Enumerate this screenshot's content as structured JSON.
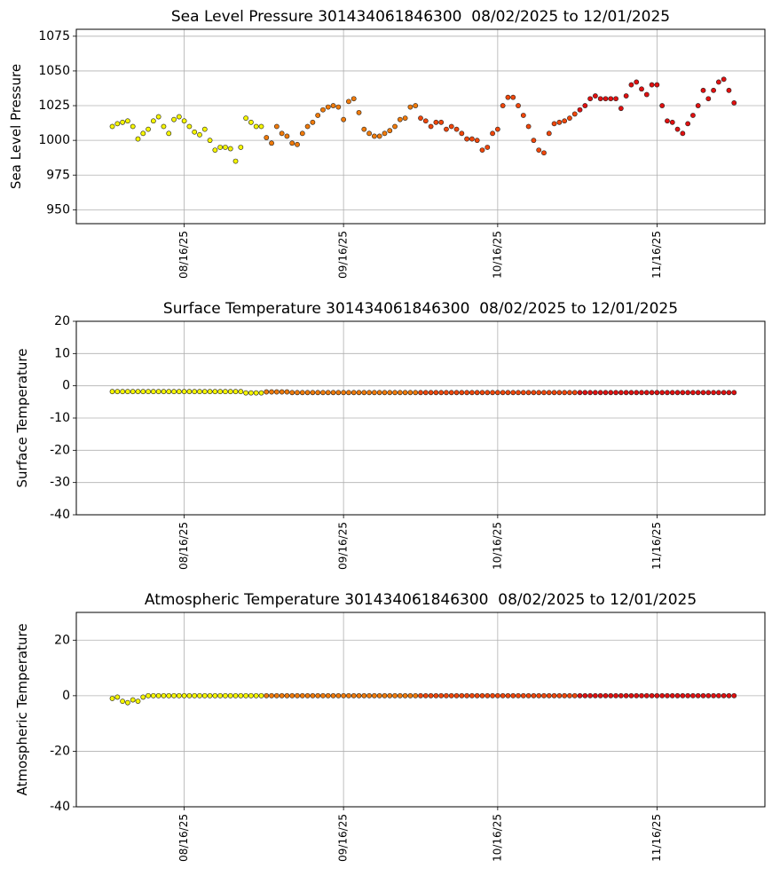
{
  "chart_data": [
    {
      "type": "scatter",
      "title": "Sea Level Pressure 301434061846300  08/02/2025 to 12/01/2025",
      "y_label": "Sea Level Pressure",
      "xlim": [
        "07/26/25",
        "12/07/25"
      ],
      "xticks": [
        {
          "value": "08/16/25",
          "label": "08/16/25"
        },
        {
          "value": "09/16/25",
          "label": "09/16/25"
        },
        {
          "value": "10/16/25",
          "label": "10/16/25"
        },
        {
          "value": "11/16/25",
          "label": "11/16/25"
        }
      ],
      "ylim": [
        940,
        1080
      ],
      "yticks": [
        950,
        975,
        1000,
        1025,
        1050,
        1075
      ],
      "grid": true,
      "series": [
        {
          "color": "#f5f500",
          "x": [
            "08/02/25",
            "08/03/25",
            "08/04/25",
            "08/05/25",
            "08/06/25",
            "08/07/25",
            "08/08/25",
            "08/09/25",
            "08/10/25",
            "08/11/25",
            "08/12/25",
            "08/13/25",
            "08/14/25",
            "08/15/25",
            "08/16/25",
            "08/17/25",
            "08/18/25",
            "08/19/25",
            "08/20/25",
            "08/21/25",
            "08/22/25",
            "08/23/25",
            "08/24/25",
            "08/25/25",
            "08/26/25",
            "08/27/25",
            "08/28/25",
            "08/29/25",
            "08/30/25",
            "08/31/25"
          ],
          "values": [
            1010,
            1012,
            1013,
            1014,
            1010,
            1001,
            1005,
            1008,
            1014,
            1017,
            1010,
            1005,
            1015,
            1017,
            1014,
            1010,
            1006,
            1004,
            1008,
            1000,
            993,
            995,
            995,
            994,
            985,
            995,
            1016,
            1013,
            1010,
            1010
          ]
        },
        {
          "color": "#f07a0a",
          "x": [
            "09/01/25",
            "09/02/25",
            "09/03/25",
            "09/04/25",
            "09/05/25",
            "09/06/25",
            "09/07/25",
            "09/08/25",
            "09/09/25",
            "09/10/25",
            "09/11/25",
            "09/12/25",
            "09/13/25",
            "09/14/25",
            "09/15/25",
            "09/16/25",
            "09/17/25",
            "09/18/25",
            "09/19/25",
            "09/20/25",
            "09/21/25",
            "09/22/25",
            "09/23/25",
            "09/24/25",
            "09/25/25",
            "09/26/25",
            "09/27/25",
            "09/28/25",
            "09/29/25",
            "09/30/25"
          ],
          "values": [
            1002,
            998,
            1010,
            1005,
            1003,
            998,
            997,
            1005,
            1010,
            1013,
            1018,
            1022,
            1024,
            1025,
            1024,
            1015,
            1028,
            1030,
            1020,
            1008,
            1005,
            1003,
            1003,
            1005,
            1007,
            1010,
            1015,
            1016,
            1024,
            1025
          ]
        },
        {
          "color": "#f0460a",
          "x": [
            "10/01/25",
            "10/02/25",
            "10/03/25",
            "10/04/25",
            "10/05/25",
            "10/06/25",
            "10/07/25",
            "10/08/25",
            "10/09/25",
            "10/10/25",
            "10/11/25",
            "10/12/25",
            "10/13/25",
            "10/14/25",
            "10/15/25",
            "10/16/25",
            "10/17/25",
            "10/18/25",
            "10/19/25",
            "10/20/25",
            "10/21/25",
            "10/22/25",
            "10/23/25",
            "10/24/25",
            "10/25/25",
            "10/26/25",
            "10/27/25",
            "10/28/25",
            "10/29/25",
            "10/30/25",
            "10/31/25"
          ],
          "values": [
            1016,
            1014,
            1010,
            1013,
            1013,
            1008,
            1010,
            1008,
            1005,
            1001,
            1001,
            1000,
            993,
            995,
            1005,
            1008,
            1025,
            1031,
            1031,
            1025,
            1018,
            1010,
            1000,
            993,
            991,
            1005,
            1012,
            1013,
            1014,
            1016,
            1019
          ]
        },
        {
          "color": "#e01010",
          "x": [
            "11/01/25",
            "11/02/25",
            "11/03/25",
            "11/04/25",
            "11/05/25",
            "11/06/25",
            "11/07/25",
            "11/08/25",
            "11/09/25",
            "11/10/25",
            "11/11/25",
            "11/12/25",
            "11/13/25",
            "11/14/25",
            "11/15/25",
            "11/16/25",
            "11/17/25",
            "11/18/25",
            "11/19/25",
            "11/20/25",
            "11/21/25",
            "11/22/25",
            "11/23/25",
            "11/24/25",
            "11/25/25",
            "11/26/25",
            "11/27/25",
            "11/28/25",
            "11/29/25",
            "11/30/25",
            "12/01/25"
          ],
          "values": [
            1022,
            1025,
            1030,
            1032,
            1030,
            1030,
            1030,
            1030,
            1023,
            1032,
            1040,
            1042,
            1037,
            1033,
            1040,
            1040,
            1025,
            1014,
            1013,
            1008,
            1005,
            1012,
            1018,
            1025,
            1036,
            1030,
            1036,
            1042,
            1044,
            1036,
            1027
          ]
        }
      ]
    },
    {
      "type": "scatter",
      "title": "Surface Temperature 301434061846300  08/02/2025 to 12/01/2025",
      "y_label": "Surface Temperature",
      "xlim": [
        "07/26/25",
        "12/07/25"
      ],
      "xticks": [
        {
          "value": "08/16/25",
          "label": "08/16/25"
        },
        {
          "value": "09/16/25",
          "label": "09/16/25"
        },
        {
          "value": "10/16/25",
          "label": "10/16/25"
        },
        {
          "value": "11/16/25",
          "label": "11/16/25"
        }
      ],
      "ylim": [
        -40,
        20
      ],
      "yticks": [
        -40,
        -30,
        -20,
        -10,
        0,
        10,
        20
      ],
      "grid": true,
      "series": [
        {
          "color": "#f5f500",
          "x": [
            "08/02/25",
            "08/03/25",
            "08/04/25",
            "08/05/25",
            "08/06/25",
            "08/07/25",
            "08/08/25",
            "08/09/25",
            "08/10/25",
            "08/11/25",
            "08/12/25",
            "08/13/25",
            "08/14/25",
            "08/15/25",
            "08/16/25",
            "08/17/25",
            "08/18/25",
            "08/19/25",
            "08/20/25",
            "08/21/25",
            "08/22/25",
            "08/23/25",
            "08/24/25",
            "08/25/25",
            "08/26/25",
            "08/27/25",
            "08/28/25",
            "08/29/25",
            "08/30/25",
            "08/31/25"
          ],
          "values": [
            -1.8,
            -1.8,
            -1.8,
            -1.8,
            -1.8,
            -1.8,
            -1.8,
            -1.8,
            -1.8,
            -1.8,
            -1.8,
            -1.8,
            -1.8,
            -1.8,
            -1.8,
            -1.8,
            -1.8,
            -1.8,
            -1.8,
            -1.8,
            -1.8,
            -1.8,
            -1.8,
            -1.8,
            -1.8,
            -1.8,
            -2.2,
            -2.2,
            -2.2,
            -2.2
          ]
        },
        {
          "color": "#f07a0a",
          "x": [
            "09/01/25",
            "09/02/25",
            "09/03/25",
            "09/04/25",
            "09/05/25",
            "09/06/25",
            "09/07/25",
            "09/08/25",
            "09/09/25",
            "09/10/25",
            "09/11/25",
            "09/12/25",
            "09/13/25",
            "09/14/25",
            "09/15/25",
            "09/16/25",
            "09/17/25",
            "09/18/25",
            "09/19/25",
            "09/20/25",
            "09/21/25",
            "09/22/25",
            "09/23/25",
            "09/24/25",
            "09/25/25",
            "09/26/25",
            "09/27/25",
            "09/28/25",
            "09/29/25",
            "09/30/25"
          ],
          "values": [
            -1.9,
            -1.9,
            -1.9,
            -1.9,
            -1.9,
            -2.1,
            -2.1,
            -2.1,
            -2.1,
            -2.1,
            -2.1,
            -2.1,
            -2.1,
            -2.1,
            -2.1,
            -2.1,
            -2.1,
            -2.1,
            -2.1,
            -2.1,
            -2.1,
            -2.1,
            -2.1,
            -2.1,
            -2.1,
            -2.1,
            -2.1,
            -2.1,
            -2.1,
            -2.1
          ]
        },
        {
          "color": "#f0460a",
          "x": [
            "10/01/25",
            "10/02/25",
            "10/03/25",
            "10/04/25",
            "10/05/25",
            "10/06/25",
            "10/07/25",
            "10/08/25",
            "10/09/25",
            "10/10/25",
            "10/11/25",
            "10/12/25",
            "10/13/25",
            "10/14/25",
            "10/15/25",
            "10/16/25",
            "10/17/25",
            "10/18/25",
            "10/19/25",
            "10/20/25",
            "10/21/25",
            "10/22/25",
            "10/23/25",
            "10/24/25",
            "10/25/25",
            "10/26/25",
            "10/27/25",
            "10/28/25",
            "10/29/25",
            "10/30/25",
            "10/31/25"
          ],
          "values": [
            -2.1,
            -2.1,
            -2.1,
            -2.1,
            -2.1,
            -2.1,
            -2.1,
            -2.1,
            -2.1,
            -2.1,
            -2.1,
            -2.1,
            -2.1,
            -2.1,
            -2.1,
            -2.1,
            -2.1,
            -2.1,
            -2.1,
            -2.1,
            -2.1,
            -2.1,
            -2.1,
            -2.1,
            -2.1,
            -2.1,
            -2.1,
            -2.1,
            -2.1,
            -2.1,
            -2.1
          ]
        },
        {
          "color": "#e01010",
          "x": [
            "11/01/25",
            "11/02/25",
            "11/03/25",
            "11/04/25",
            "11/05/25",
            "11/06/25",
            "11/07/25",
            "11/08/25",
            "11/09/25",
            "11/10/25",
            "11/11/25",
            "11/12/25",
            "11/13/25",
            "11/14/25",
            "11/15/25",
            "11/16/25",
            "11/17/25",
            "11/18/25",
            "11/19/25",
            "11/20/25",
            "11/21/25",
            "11/22/25",
            "11/23/25",
            "11/24/25",
            "11/25/25",
            "11/26/25",
            "11/27/25",
            "11/28/25",
            "11/29/25",
            "11/30/25",
            "12/01/25"
          ],
          "values": [
            -2.1,
            -2.1,
            -2.1,
            -2.1,
            -2.1,
            -2.1,
            -2.1,
            -2.1,
            -2.1,
            -2.1,
            -2.1,
            -2.1,
            -2.1,
            -2.1,
            -2.1,
            -2.1,
            -2.1,
            -2.1,
            -2.1,
            -2.1,
            -2.1,
            -2.1,
            -2.1,
            -2.1,
            -2.1,
            -2.1,
            -2.1,
            -2.1,
            -2.1,
            -2.1,
            -2.1
          ]
        }
      ]
    },
    {
      "type": "scatter",
      "title": "Atmospheric Temperature 301434061846300  08/02/2025 to 12/01/2025",
      "y_label": "Atmospheric Temperature",
      "xlim": [
        "07/26/25",
        "12/07/25"
      ],
      "xticks": [
        {
          "value": "08/16/25",
          "label": "08/16/25"
        },
        {
          "value": "09/16/25",
          "label": "09/16/25"
        },
        {
          "value": "10/16/25",
          "label": "10/16/25"
        },
        {
          "value": "11/16/25",
          "label": "11/16/25"
        }
      ],
      "ylim": [
        -40,
        30
      ],
      "yticks": [
        -40,
        -20,
        0,
        20
      ],
      "grid": true,
      "series": [
        {
          "color": "#f5f500",
          "x": [
            "08/02/25",
            "08/03/25",
            "08/04/25",
            "08/05/25",
            "08/06/25",
            "08/07/25",
            "08/08/25",
            "08/09/25",
            "08/10/25",
            "08/11/25",
            "08/12/25",
            "08/13/25",
            "08/14/25",
            "08/15/25",
            "08/16/25",
            "08/17/25",
            "08/18/25",
            "08/19/25",
            "08/20/25",
            "08/21/25",
            "08/22/25",
            "08/23/25",
            "08/24/25",
            "08/25/25",
            "08/26/25",
            "08/27/25",
            "08/28/25",
            "08/29/25",
            "08/30/25",
            "08/31/25"
          ],
          "values": [
            -1,
            -0.5,
            -2,
            -2.5,
            -1.5,
            -2,
            -0.5,
            0,
            0,
            0,
            0,
            0,
            0,
            0,
            0,
            0,
            0,
            0,
            0,
            0,
            0,
            0,
            0,
            0,
            0,
            0,
            0,
            0,
            0,
            0
          ]
        },
        {
          "color": "#f07a0a",
          "x": [
            "09/01/25",
            "09/02/25",
            "09/03/25",
            "09/04/25",
            "09/05/25",
            "09/06/25",
            "09/07/25",
            "09/08/25",
            "09/09/25",
            "09/10/25",
            "09/11/25",
            "09/12/25",
            "09/13/25",
            "09/14/25",
            "09/15/25",
            "09/16/25",
            "09/17/25",
            "09/18/25",
            "09/19/25",
            "09/20/25",
            "09/21/25",
            "09/22/25",
            "09/23/25",
            "09/24/25",
            "09/25/25",
            "09/26/25",
            "09/27/25",
            "09/28/25",
            "09/29/25",
            "09/30/25"
          ],
          "values": [
            0,
            0,
            0,
            0,
            0,
            0,
            0,
            0,
            0,
            0,
            0,
            0,
            0,
            0,
            0,
            0,
            0,
            0,
            0,
            0,
            0,
            0,
            0,
            0,
            0,
            0,
            0,
            0,
            0,
            0
          ]
        },
        {
          "color": "#f0460a",
          "x": [
            "10/01/25",
            "10/02/25",
            "10/03/25",
            "10/04/25",
            "10/05/25",
            "10/06/25",
            "10/07/25",
            "10/08/25",
            "10/09/25",
            "10/10/25",
            "10/11/25",
            "10/12/25",
            "10/13/25",
            "10/14/25",
            "10/15/25",
            "10/16/25",
            "10/17/25",
            "10/18/25",
            "10/19/25",
            "10/20/25",
            "10/21/25",
            "10/22/25",
            "10/23/25",
            "10/24/25",
            "10/25/25",
            "10/26/25",
            "10/27/25",
            "10/28/25",
            "10/29/25",
            "10/30/25",
            "10/31/25"
          ],
          "values": [
            0,
            0,
            0,
            0,
            0,
            0,
            0,
            0,
            0,
            0,
            0,
            0,
            0,
            0,
            0,
            0,
            0,
            0,
            0,
            0,
            0,
            0,
            0,
            0,
            0,
            0,
            0,
            0,
            0,
            0,
            0
          ]
        },
        {
          "color": "#e01010",
          "x": [
            "11/01/25",
            "11/02/25",
            "11/03/25",
            "11/04/25",
            "11/05/25",
            "11/06/25",
            "11/07/25",
            "11/08/25",
            "11/09/25",
            "11/10/25",
            "11/11/25",
            "11/12/25",
            "11/13/25",
            "11/14/25",
            "11/15/25",
            "11/16/25",
            "11/17/25",
            "11/18/25",
            "11/19/25",
            "11/20/25",
            "11/21/25",
            "11/22/25",
            "11/23/25",
            "11/24/25",
            "11/25/25",
            "11/26/25",
            "11/27/25",
            "11/28/25",
            "11/29/25",
            "11/30/25",
            "12/01/25"
          ],
          "values": [
            0,
            0,
            0,
            0,
            0,
            0,
            0,
            0,
            0,
            0,
            0,
            0,
            0,
            0,
            0,
            0,
            0,
            0,
            0,
            0,
            0,
            0,
            0,
            0,
            0,
            0,
            0,
            0,
            0,
            0,
            0
          ]
        }
      ]
    }
  ]
}
